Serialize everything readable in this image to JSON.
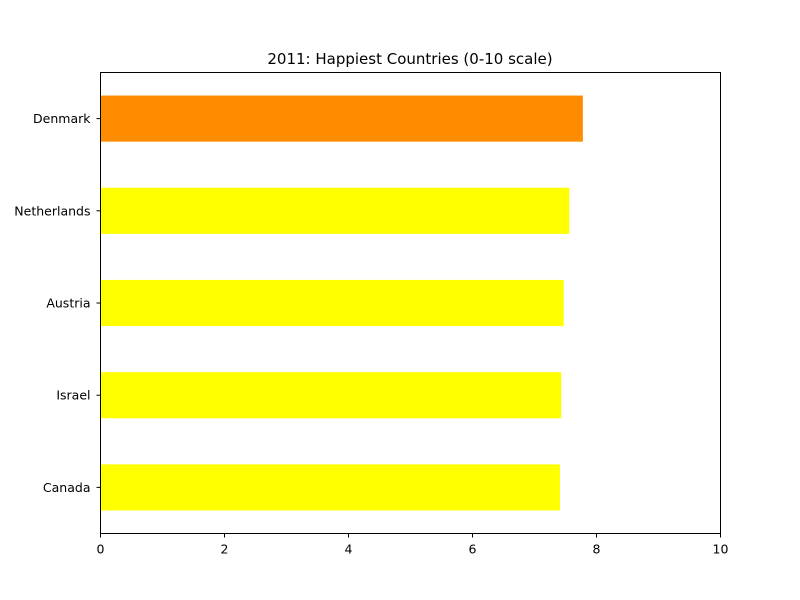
{
  "chart_data": {
    "type": "bar",
    "orientation": "horizontal",
    "title": "2011: Happiest Countries (0-10 scale)",
    "xlabel": "",
    "ylabel": "",
    "categories": [
      "Denmark",
      "Netherlands",
      "Austria",
      "Israel",
      "Canada"
    ],
    "values": [
      7.78,
      7.56,
      7.47,
      7.43,
      7.41
    ],
    "colors": [
      "#ff8c00",
      "#ffff00",
      "#ffff00",
      "#ffff00",
      "#ffff00"
    ],
    "xlim": [
      0,
      10
    ],
    "xticks": [
      0,
      2,
      4,
      6,
      8,
      10
    ],
    "grid": false,
    "legend": "none"
  }
}
